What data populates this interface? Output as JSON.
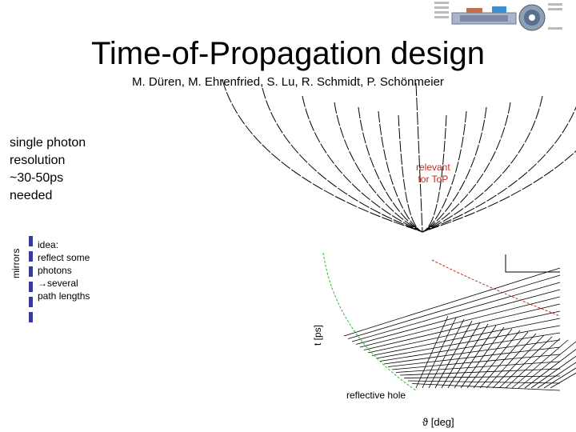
{
  "slide": {
    "title": "Time-of-Propagation design",
    "authors": "M. Düren, M. Ehrenfried, S. Lu, R. Schmidt, P. Schönmeier",
    "note_lines": [
      "single photon",
      "resolution",
      "~30-50ps",
      "needed"
    ],
    "mirrors_label": "mirrors",
    "idea_lines": [
      "idea:",
      "reflect some",
      "photons",
      "→several",
      "path lengths"
    ],
    "relevant_lines": [
      "relevant",
      "for ToP"
    ],
    "y_axis_label": "t [ps]",
    "reflective_hole_label": "reflective hole",
    "x_axis_label": "ϑ [deg]"
  },
  "colors": {
    "text": "#000000",
    "red_curve": "#c8281e",
    "green_curve": "#22c322",
    "mirror_bar": "#3a3a9e"
  },
  "icons": {
    "detector_thumbnail": "detector-schematic-icon"
  }
}
